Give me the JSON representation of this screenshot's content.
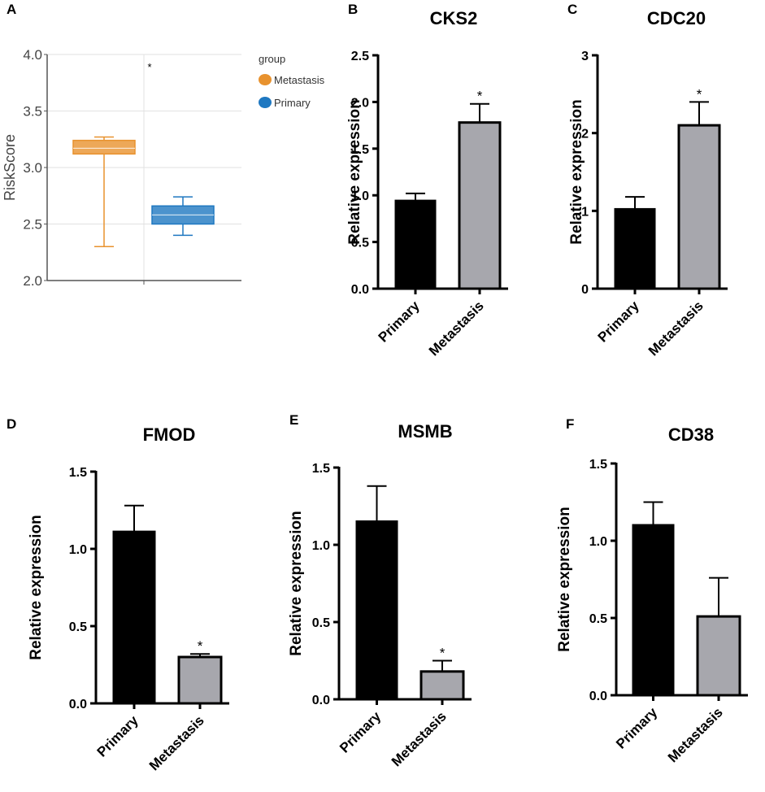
{
  "chart_data": [
    {
      "panel": "A",
      "type": "box",
      "title": "",
      "xlabel": "",
      "ylabel": "RiskScore",
      "ylim": [
        2.0,
        4.0
      ],
      "yticks": [
        "2.0",
        "2.5",
        "3.0",
        "3.5",
        "4.0"
      ],
      "grid": true,
      "legend_title": "group",
      "legend": [
        {
          "name": "Metastasis",
          "color": "#E8922E"
        },
        {
          "name": "Primary",
          "color": "#1F78C1"
        }
      ],
      "annotation": "*",
      "series": [
        {
          "name": "Metastasis",
          "min": 2.3,
          "q1": 3.12,
          "median": 3.17,
          "q3": 3.24,
          "max": 3.27,
          "color": "#E8922E"
        },
        {
          "name": "Primary",
          "min": 2.4,
          "q1": 2.5,
          "median": 2.58,
          "q3": 2.66,
          "max": 2.74,
          "color": "#1F78C1"
        }
      ]
    },
    {
      "panel": "B",
      "type": "bar",
      "title": "CKS2",
      "ylabel": "Relative expression",
      "categories": [
        "Primary",
        "Metastasis"
      ],
      "values": [
        0.94,
        1.78
      ],
      "errors": [
        0.08,
        0.2
      ],
      "significance": [
        "",
        "*"
      ],
      "ylim": [
        0,
        2.5
      ],
      "yticks": [
        "0.0",
        "0.5",
        "1.0",
        "1.5",
        "2.0",
        "2.5"
      ]
    },
    {
      "panel": "C",
      "type": "bar",
      "title": "CDC20",
      "ylabel": "Relative expression",
      "categories": [
        "Primary",
        "Metastasis"
      ],
      "values": [
        1.02,
        2.1
      ],
      "errors": [
        0.16,
        0.3
      ],
      "significance": [
        "",
        "*"
      ],
      "ylim": [
        0,
        3
      ],
      "yticks": [
        "0",
        "1",
        "2",
        "3"
      ]
    },
    {
      "panel": "D",
      "type": "bar",
      "title": "FMOD",
      "ylabel": "Relative expression",
      "categories": [
        "Primary",
        "Metastasis"
      ],
      "values": [
        1.11,
        0.3
      ],
      "errors": [
        0.17,
        0.02
      ],
      "significance": [
        "",
        "*"
      ],
      "ylim": [
        0,
        1.5
      ],
      "yticks": [
        "0.0",
        "0.5",
        "1.0",
        "1.5"
      ]
    },
    {
      "panel": "E",
      "type": "bar",
      "title": "MSMB",
      "ylabel": "Relative expression",
      "categories": [
        "Primary",
        "Metastasis"
      ],
      "values": [
        1.15,
        0.18
      ],
      "errors": [
        0.23,
        0.07
      ],
      "significance": [
        "",
        "*"
      ],
      "ylim": [
        0,
        1.5
      ],
      "yticks": [
        "0.0",
        "0.5",
        "1.0",
        "1.5"
      ]
    },
    {
      "panel": "F",
      "type": "bar",
      "title": "CD38",
      "ylabel": "Relative expression",
      "categories": [
        "Primary",
        "Metastasis"
      ],
      "values": [
        1.1,
        0.51
      ],
      "errors": [
        0.15,
        0.25
      ],
      "significance": [
        "",
        ""
      ],
      "ylim": [
        0,
        1.5
      ],
      "yticks": [
        "0.0",
        "0.5",
        "1.0",
        "1.5"
      ]
    }
  ],
  "style": {
    "primary_bar_color": "#000000",
    "metastasis_bar_color": "#A7A7AD",
    "axis_color": "#000000",
    "grid_color": "#e2e2e2"
  }
}
